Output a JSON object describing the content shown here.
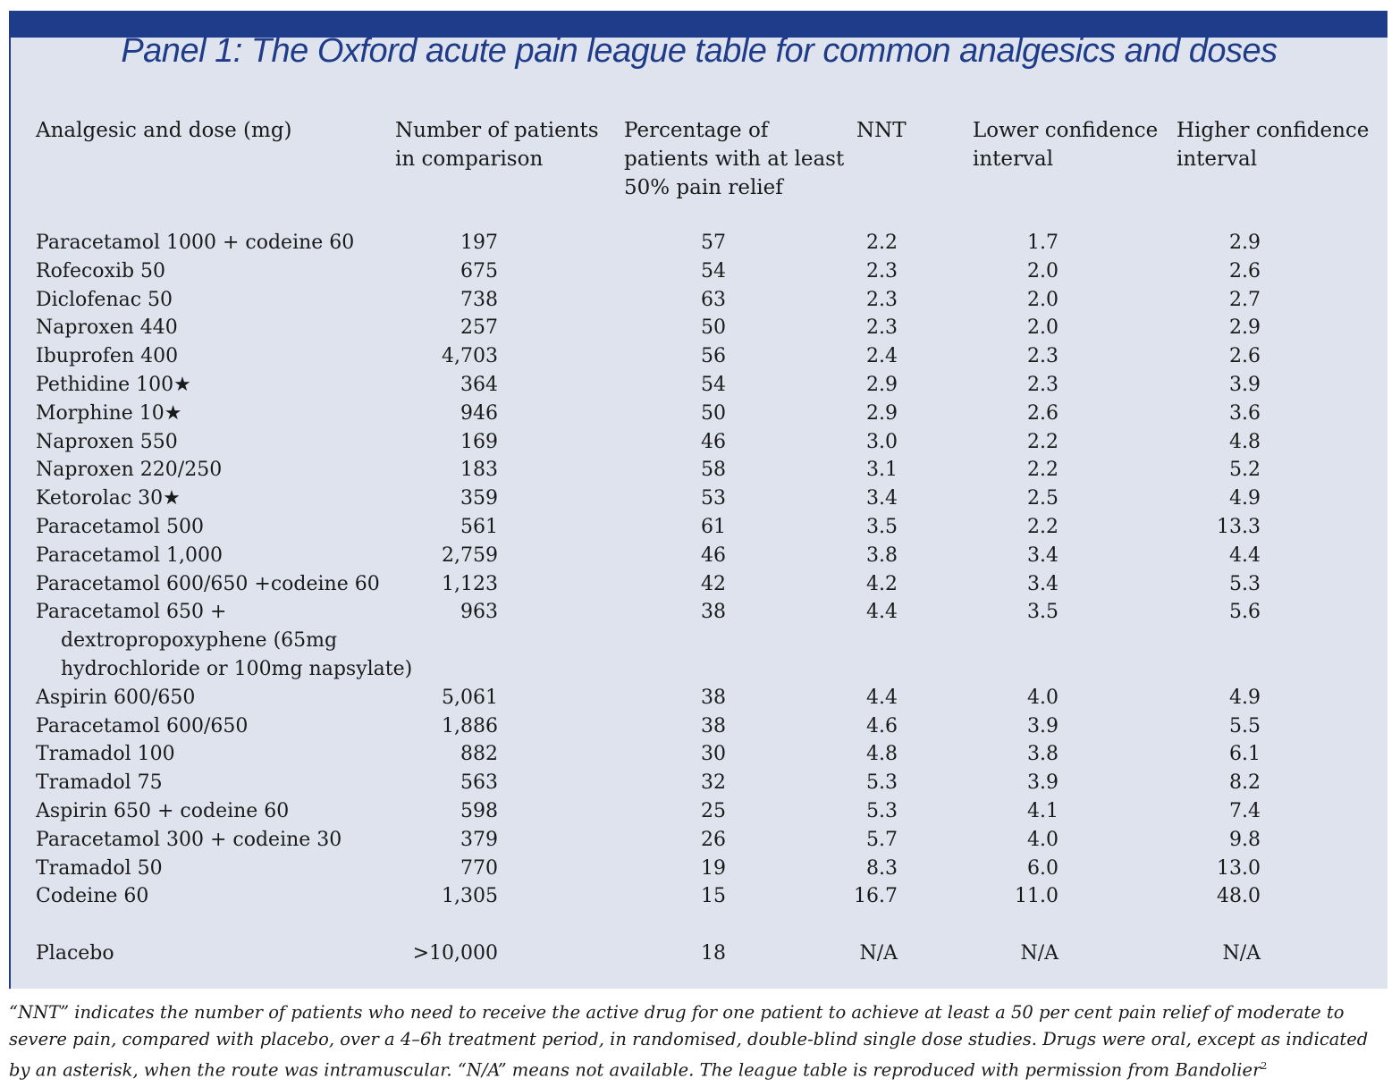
{
  "title": "Panel 1: The Oxford acute pain league table for common analgesics and doses",
  "columns": [
    [
      "Analgesic and dose (mg)"
    ],
    [
      "Number of patients",
      "in comparison"
    ],
    [
      "Percentage of",
      "patients with at least",
      "50% pain relief"
    ],
    [
      "NNT"
    ],
    [
      "Lower confidence",
      "interval"
    ],
    [
      "Higher confidence",
      "interval"
    ]
  ],
  "rows": [
    {
      "name": [
        "Paracetamol 1000 + codeine 60"
      ],
      "n": "197",
      "pct": "57",
      "nnt": "2.2",
      "lo": "1.7",
      "hi": "2.9"
    },
    {
      "name": [
        "Rofecoxib 50"
      ],
      "n": "675",
      "pct": "54",
      "nnt": "2.3",
      "lo": "2.0",
      "hi": "2.6"
    },
    {
      "name": [
        "Diclofenac 50"
      ],
      "n": "738",
      "pct": "63",
      "nnt": "2.3",
      "lo": "2.0",
      "hi": "2.7"
    },
    {
      "name": [
        "Naproxen 440"
      ],
      "n": "257",
      "pct": "50",
      "nnt": "2.3",
      "lo": "2.0",
      "hi": "2.9"
    },
    {
      "name": [
        "Ibuprofen 400"
      ],
      "n": "4,703",
      "pct": "56",
      "nnt": "2.4",
      "lo": "2.3",
      "hi": "2.6"
    },
    {
      "name": [
        "Pethidine 100★"
      ],
      "n": "364",
      "pct": "54",
      "nnt": "2.9",
      "lo": "2.3",
      "hi": "3.9"
    },
    {
      "name": [
        "Morphine 10★"
      ],
      "n": "946",
      "pct": "50",
      "nnt": "2.9",
      "lo": "2.6",
      "hi": "3.6"
    },
    {
      "name": [
        "Naproxen 550"
      ],
      "n": "169",
      "pct": "46",
      "nnt": "3.0",
      "lo": "2.2",
      "hi": "4.8"
    },
    {
      "name": [
        "Naproxen 220/250"
      ],
      "n": "183",
      "pct": "58",
      "nnt": "3.1",
      "lo": "2.2",
      "hi": "5.2"
    },
    {
      "name": [
        "Ketorolac 30★"
      ],
      "n": "359",
      "pct": "53",
      "nnt": "3.4",
      "lo": "2.5",
      "hi": "4.9"
    },
    {
      "name": [
        "Paracetamol 500"
      ],
      "n": "561",
      "pct": "61",
      "nnt": "3.5",
      "lo": "2.2",
      "hi": "13.3"
    },
    {
      "name": [
        "Paracetamol 1,000"
      ],
      "n": "2,759",
      "pct": "46",
      "nnt": "3.8",
      "lo": "3.4",
      "hi": "4.4"
    },
    {
      "name": [
        "Paracetamol 600/650 +codeine 60"
      ],
      "n": "1,123",
      "pct": "42",
      "nnt": "4.2",
      "lo": "3.4",
      "hi": "5.3"
    },
    {
      "name": [
        "Paracetamol 650 +",
        "dextropropoxyphene (65mg",
        "hydrochloride or 100mg napsylate)"
      ],
      "n": "963",
      "pct": "38",
      "nnt": "4.4",
      "lo": "3.5",
      "hi": "5.6"
    },
    {
      "name": [
        "Aspirin 600/650"
      ],
      "n": "5,061",
      "pct": "38",
      "nnt": "4.4",
      "lo": "4.0",
      "hi": "4.9"
    },
    {
      "name": [
        "Paracetamol 600/650"
      ],
      "n": "1,886",
      "pct": "38",
      "nnt": "4.6",
      "lo": "3.9",
      "hi": "5.5"
    },
    {
      "name": [
        "Tramadol 100"
      ],
      "n": "882",
      "pct": "30",
      "nnt": "4.8",
      "lo": "3.8",
      "hi": "6.1"
    },
    {
      "name": [
        "Tramadol 75"
      ],
      "n": "563",
      "pct": "32",
      "nnt": "5.3",
      "lo": "3.9",
      "hi": "8.2"
    },
    {
      "name": [
        "Aspirin 650 + codeine 60"
      ],
      "n": "598",
      "pct": "25",
      "nnt": "5.3",
      "lo": "4.1",
      "hi": "7.4"
    },
    {
      "name": [
        "Paracetamol 300 + codeine 30"
      ],
      "n": "379",
      "pct": "26",
      "nnt": "5.7",
      "lo": "4.0",
      "hi": "9.8"
    },
    {
      "name": [
        "Tramadol 50"
      ],
      "n": "770",
      "pct": "19",
      "nnt": "8.3",
      "lo": "6.0",
      "hi": "13.0"
    },
    {
      "name": [
        "Codeine 60"
      ],
      "n": "1,305",
      "pct": "15",
      "nnt": "16.7",
      "lo": "11.0",
      "hi": "48.0"
    }
  ],
  "placebo": {
    "name": [
      "Placebo"
    ],
    "n": ">10,000",
    "pct": "18",
    "nnt": "N/A",
    "lo": "N/A",
    "hi": "N/A"
  },
  "footnote": {
    "text": "“NNT” indicates the number of patients who need to receive the active drug for one patient to achieve at least a 50 per cent pain relief of moderate to severe pain, compared with placebo, over a 4–6h treatment period, in randomised, double-blind single dose studies. Drugs were oral, except as indicated by an asterisk, when the route was intramuscular. “N/A” means not available. The league table is reproduced with permission from Bandolier",
    "ref": "2"
  },
  "colors": {
    "accent": "#1f3c8a",
    "panel_bg": "#dfe3ee"
  }
}
